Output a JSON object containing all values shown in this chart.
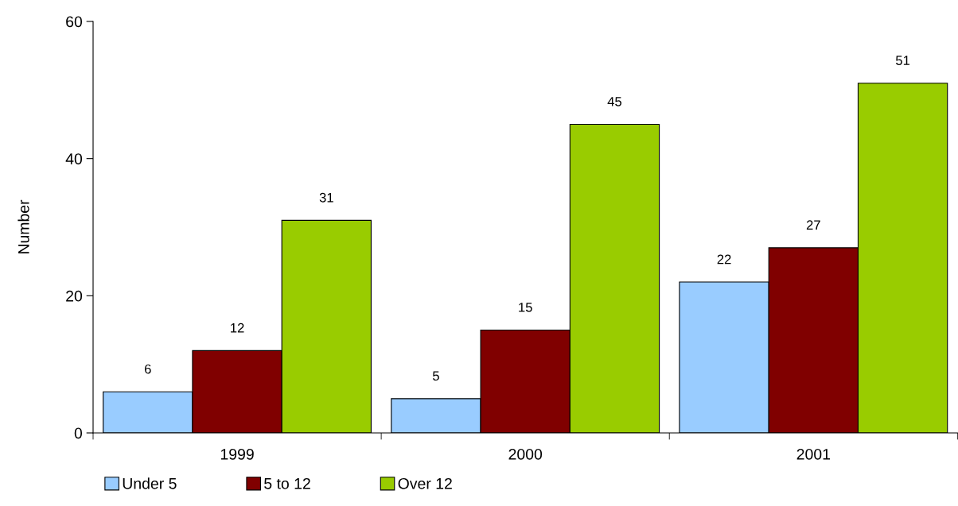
{
  "chart_data": {
    "type": "bar",
    "ylabel": "Number",
    "categories": [
      "1999",
      "2000",
      "2001"
    ],
    "series": [
      {
        "name": "Under 5",
        "color": "#99ccff",
        "values": [
          6,
          5,
          22
        ]
      },
      {
        "name": "5 to 12",
        "color": "#800000",
        "values": [
          12,
          15,
          27
        ]
      },
      {
        "name": "Over 12",
        "color": "#99cc00",
        "values": [
          31,
          45,
          51
        ]
      }
    ],
    "ylim": [
      0,
      60
    ],
    "yticks": [
      0,
      20,
      40,
      60
    ],
    "data_labels": true,
    "grid": false,
    "legend": "bottom left"
  }
}
